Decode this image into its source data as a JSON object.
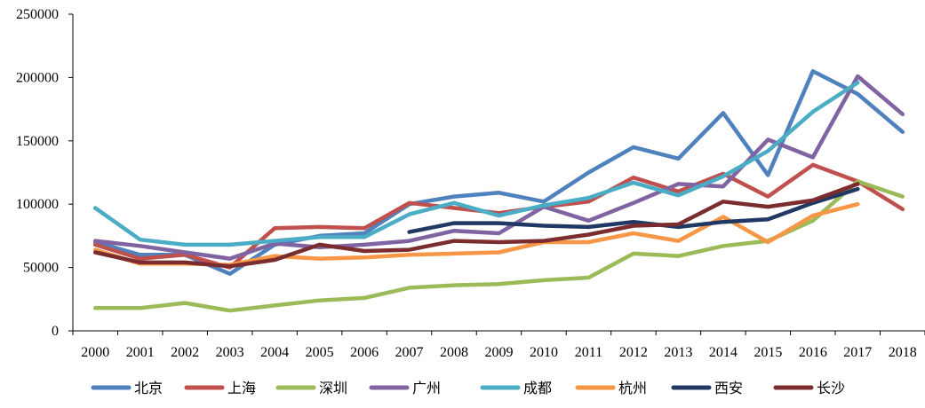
{
  "chart_data": {
    "type": "line",
    "title": "",
    "xlabel": "",
    "ylabel": "",
    "categories": [
      "2000",
      "2001",
      "2002",
      "2003",
      "2004",
      "2005",
      "2006",
      "2007",
      "2008",
      "2009",
      "2010",
      "2011",
      "2012",
      "2013",
      "2014",
      "2015",
      "2016",
      "2017",
      "2018"
    ],
    "y_ticks": [
      "0",
      "50000",
      "100000",
      "150000",
      "200000",
      "250000"
    ],
    "ylim": [
      0,
      250000
    ],
    "grid": false,
    "legend_position": "bottom",
    "series": [
      {
        "name": "北京",
        "color": "#4F81BD",
        "values": [
          70000,
          60000,
          60000,
          45000,
          68000,
          75000,
          77000,
          100000,
          106000,
          109000,
          102000,
          125000,
          145000,
          136000,
          172000,
          123000,
          205000,
          187000,
          157000
        ]
      },
      {
        "name": "上海",
        "color": "#C0504D",
        "values": [
          68000,
          57000,
          60000,
          50000,
          81000,
          82000,
          81000,
          101000,
          97000,
          93000,
          98000,
          102000,
          121000,
          110000,
          124000,
          106000,
          131000,
          118000,
          96000
        ]
      },
      {
        "name": "深圳",
        "color": "#9BBB59",
        "values": [
          18000,
          18000,
          22000,
          16000,
          20000,
          24000,
          26000,
          34000,
          36000,
          37000,
          40000,
          42000,
          61000,
          59000,
          67000,
          71000,
          87000,
          118000,
          106000
        ]
      },
      {
        "name": "广州",
        "color": "#8064A2",
        "values": [
          71000,
          67000,
          62000,
          57000,
          69000,
          66000,
          68000,
          71000,
          79000,
          77000,
          98000,
          87000,
          101000,
          116000,
          114000,
          151000,
          137000,
          201000,
          171000
        ]
      },
      {
        "name": "成都",
        "color": "#4BACC6",
        "values": [
          97000,
          72000,
          68000,
          68000,
          71000,
          74000,
          74000,
          92000,
          101000,
          91000,
          99000,
          105000,
          117000,
          107000,
          122000,
          142000,
          173000,
          196000,
          null
        ]
      },
      {
        "name": "杭州",
        "color": "#F79646",
        "values": [
          64000,
          53000,
          53000,
          52000,
          59000,
          57000,
          58000,
          60000,
          61000,
          62000,
          70000,
          70000,
          77000,
          71000,
          90000,
          70000,
          91000,
          100000,
          null
        ]
      },
      {
        "name": "西安",
        "color": "#1F3864",
        "values": [
          null,
          null,
          null,
          null,
          null,
          null,
          null,
          78000,
          85000,
          85000,
          83000,
          82000,
          86000,
          82000,
          86000,
          88000,
          101000,
          112000,
          null
        ]
      },
      {
        "name": "长沙",
        "color": "#7B2C2E",
        "values": [
          62000,
          54000,
          54000,
          51000,
          56000,
          68000,
          63000,
          64000,
          71000,
          70000,
          71000,
          76000,
          83000,
          84000,
          102000,
          98000,
          103000,
          116000,
          null
        ]
      }
    ]
  }
}
